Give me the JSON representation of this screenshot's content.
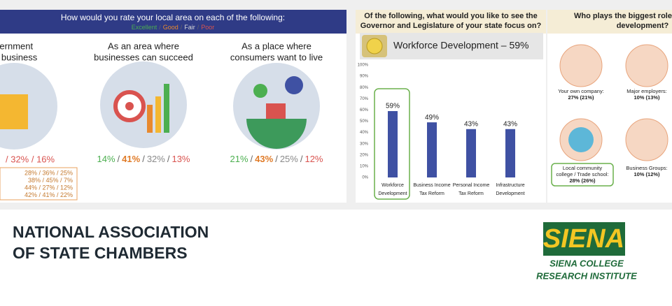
{
  "left_panel": {
    "title": "How would you rate your local area on each of the following:",
    "legend": [
      "Excellent",
      "Good",
      "Fair",
      "Poor"
    ],
    "legend_colors": [
      "#4caf50",
      "#e8892e",
      "#d8d8d8",
      "#d9534f"
    ],
    "separator": "/",
    "rating_colors": [
      "#4caf50",
      "#e07b28",
      "#8a8a8a",
      "#d9534f"
    ],
    "columns": [
      {
        "title": [
          "vernment",
          "or business"
        ],
        "ratings_text": "/ 32% / 16%",
        "box_rows": [
          "28% / 36% / 25%",
          "38% / 45% / 7%",
          "44% / 27% / 12%",
          "42% / 41% / 22%"
        ]
      },
      {
        "title": [
          "As an area where",
          "businesses can succeed"
        ],
        "ratings": [
          "14%",
          "41%",
          "32%",
          "13%"
        ]
      },
      {
        "title": [
          "As a place where",
          "consumers want to live"
        ],
        "ratings": [
          "21%",
          "43%",
          "25%",
          "12%"
        ]
      }
    ]
  },
  "middle_panel": {
    "question": [
      "Of the following, what would you like to see the",
      "Governor and Legislature of your state focus on?"
    ],
    "banner": "Workforce Development – 59%"
  },
  "chart_data": {
    "type": "bar",
    "categories": [
      [
        "Workforce",
        "Development"
      ],
      [
        "Business Income",
        "Tax Reform"
      ],
      [
        "Personal Income",
        "Tax Reform"
      ],
      [
        "Infrastructure",
        "Development"
      ]
    ],
    "values": [
      59,
      49,
      43,
      43
    ],
    "value_labels": [
      "59%",
      "49%",
      "43%",
      "43%"
    ],
    "color": "#3f51a3",
    "ylim": [
      0,
      100
    ],
    "yticks": [
      {
        "value": 0,
        "label": "0%"
      },
      {
        "value": 10,
        "label": "10%"
      },
      {
        "value": 20,
        "label": "20%"
      },
      {
        "value": 30,
        "label": "30%"
      },
      {
        "value": 40,
        "label": "40%"
      },
      {
        "value": 50,
        "label": "50%"
      },
      {
        "value": 60,
        "label": "60%"
      },
      {
        "value": 70,
        "label": "70%"
      },
      {
        "value": 80,
        "label": "80%"
      },
      {
        "value": 90,
        "label": "90%"
      },
      {
        "value": 100,
        "label": "100%"
      }
    ]
  },
  "right_panel": {
    "title": [
      "Who plays the biggest role",
      "development?"
    ],
    "items": [
      {
        "label": [
          "Your own company:",
          "27% (21%)"
        ]
      },
      {
        "label": [
          "Major employers:",
          "10% (13%)"
        ]
      },
      {
        "label": [
          "Local community",
          "college / Trade school:",
          "28% (26%)"
        ]
      },
      {
        "label": [
          "Business Groups:",
          "10% (12%)"
        ]
      }
    ]
  },
  "footer": {
    "org": [
      "NATIONAL ASSOCIATION",
      "OF STATE CHAMBERS"
    ],
    "logo": "SIENA",
    "logo_sub": [
      "SIENA COLLEGE",
      "RESEARCH INSTITUTE"
    ]
  }
}
